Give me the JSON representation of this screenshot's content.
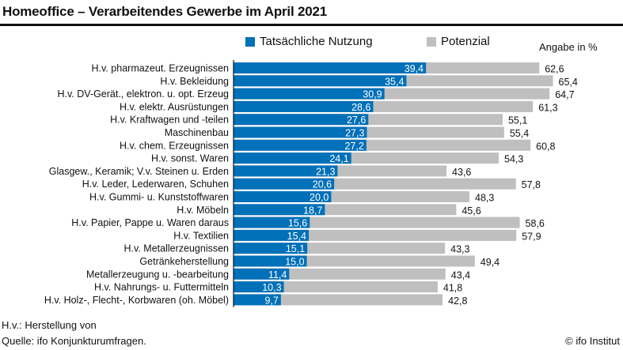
{
  "header": {
    "title": "Homeoffice – Verarbeitendes Gewerbe im April 2021"
  },
  "footer": {
    "note": "H.v.: Herstellung von",
    "source": "Quelle: ifo Konjunkturumfragen.",
    "copyright": "© ifo Institut"
  },
  "chart_data": {
    "type": "bar",
    "orientation": "horizontal",
    "title": "Homeoffice – Verarbeitendes Gewerbe im April 2021",
    "unit_label": "Angabe in %",
    "colors": {
      "actual": "#0070b8",
      "potential": "#bfbfbf"
    },
    "legend": {
      "position": "top",
      "entries": [
        "Tatsächliche Nutzung",
        "Potenzial"
      ]
    },
    "xlim": [
      0,
      70
    ],
    "grid": false,
    "categories": [
      "H.v. pharmazeut. Erzeugnissen",
      "H.v. Bekleidung",
      "H.v. DV-Gerät., elektron. u. opt. Erzeug",
      "H.v. elektr. Ausrüstungen",
      "H.v. Kraftwagen und -teilen",
      "Maschinenbau",
      "H.v. chem. Erzeugnissen",
      "H.v. sonst. Waren",
      "Glasgew., Keramik; V.v. Steinen u. Erden",
      "H.v. Leder, Lederwaren, Schuhen",
      "H.v. Gummi- u. Kunststoffwaren",
      "H.v. Möbeln",
      "H.v. Papier, Pappe u. Waren daraus",
      "H.v. Textilien",
      "H.v. Metallerzeugnissen",
      "Getränkeherstellung",
      "Metallerzeugung u. -bearbeitung",
      "H.v. Nahrungs- u. Futtermitteln",
      "H.v. Holz-, Flecht-, Korbwaren (oh. Möbel)"
    ],
    "series": [
      {
        "name": "Tatsächliche Nutzung",
        "values": [
          39.4,
          35.4,
          30.9,
          28.6,
          27.6,
          27.3,
          27.2,
          24.1,
          21.3,
          20.6,
          20.0,
          18.7,
          15.6,
          15.4,
          15.1,
          15.0,
          11.4,
          10.3,
          9.7
        ],
        "labels": [
          "39,4",
          "35,4",
          "30,9",
          "28,6",
          "27,6",
          "27,3",
          "27,2",
          "24,1",
          "21,3",
          "20,6",
          "20,0",
          "18,7",
          "15,6",
          "15,4",
          "15,1",
          "15,0",
          "11,4",
          "10,3",
          "9,7"
        ]
      },
      {
        "name": "Potenzial",
        "values": [
          62.6,
          65.4,
          64.7,
          61.3,
          55.1,
          55.4,
          60.8,
          54.3,
          43.6,
          57.8,
          48.3,
          45.6,
          58.6,
          57.9,
          43.3,
          49.4,
          43.4,
          41.8,
          42.8
        ],
        "labels": [
          "62,6",
          "65,4",
          "64,7",
          "61,3",
          "55,1",
          "55,4",
          "60,8",
          "54,3",
          "43,6",
          "57,8",
          "48,3",
          "45,6",
          "58,6",
          "57,9",
          "43,3",
          "49,4",
          "43,4",
          "41,8",
          "42,8"
        ]
      }
    ]
  }
}
